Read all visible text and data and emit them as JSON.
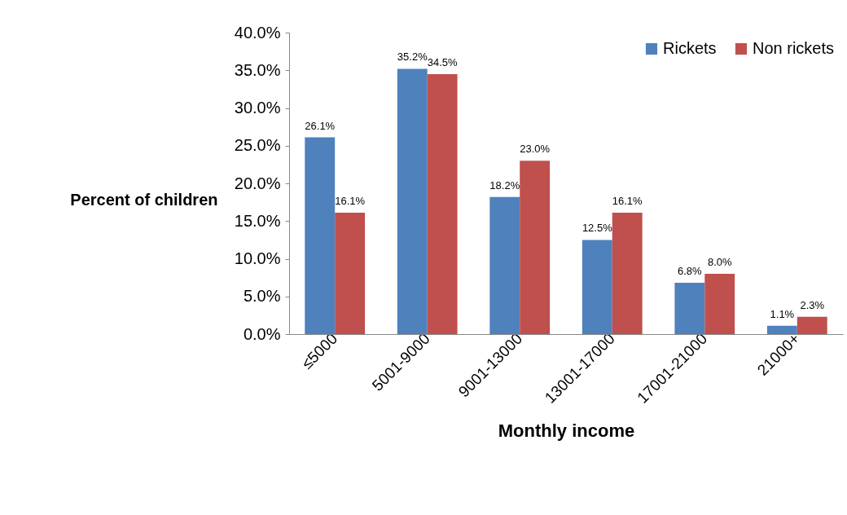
{
  "chart_data": {
    "type": "bar",
    "xlabel": "Monthly income",
    "ylabel": "Percent of children",
    "categories": [
      "≤5000",
      "5001-9000",
      "9001-13000",
      "13001-17000",
      "17001-21000",
      "21000+"
    ],
    "series": [
      {
        "name": "Rickets",
        "color": "#4f81bd",
        "values": [
          26.1,
          35.2,
          18.2,
          12.5,
          6.8,
          1.1
        ],
        "value_labels": [
          "26.1%",
          "35.2%",
          "18.2%",
          "12.5%",
          "6.8%",
          "1.1%"
        ]
      },
      {
        "name": "Non rickets",
        "color": "#c0504d",
        "values": [
          16.1,
          34.5,
          23.0,
          16.1,
          8.0,
          2.3
        ],
        "value_labels": [
          "16.1%",
          "34.5%",
          "23.0%",
          "16.1%",
          "8.0%",
          "2.3%"
        ]
      }
    ],
    "ylim": [
      0,
      40
    ],
    "yticks": [
      {
        "value": 0,
        "label": "0.0%"
      },
      {
        "value": 5,
        "label": "5.0%"
      },
      {
        "value": 10,
        "label": "10.0%"
      },
      {
        "value": 15,
        "label": "15.0%"
      },
      {
        "value": 20,
        "label": "20.0%"
      },
      {
        "value": 25,
        "label": "25.0%"
      },
      {
        "value": 30,
        "label": "30.0%"
      },
      {
        "value": 35,
        "label": "35.0%"
      },
      {
        "value": 40,
        "label": "40.0%"
      }
    ],
    "grid": false,
    "legend": "top right"
  }
}
